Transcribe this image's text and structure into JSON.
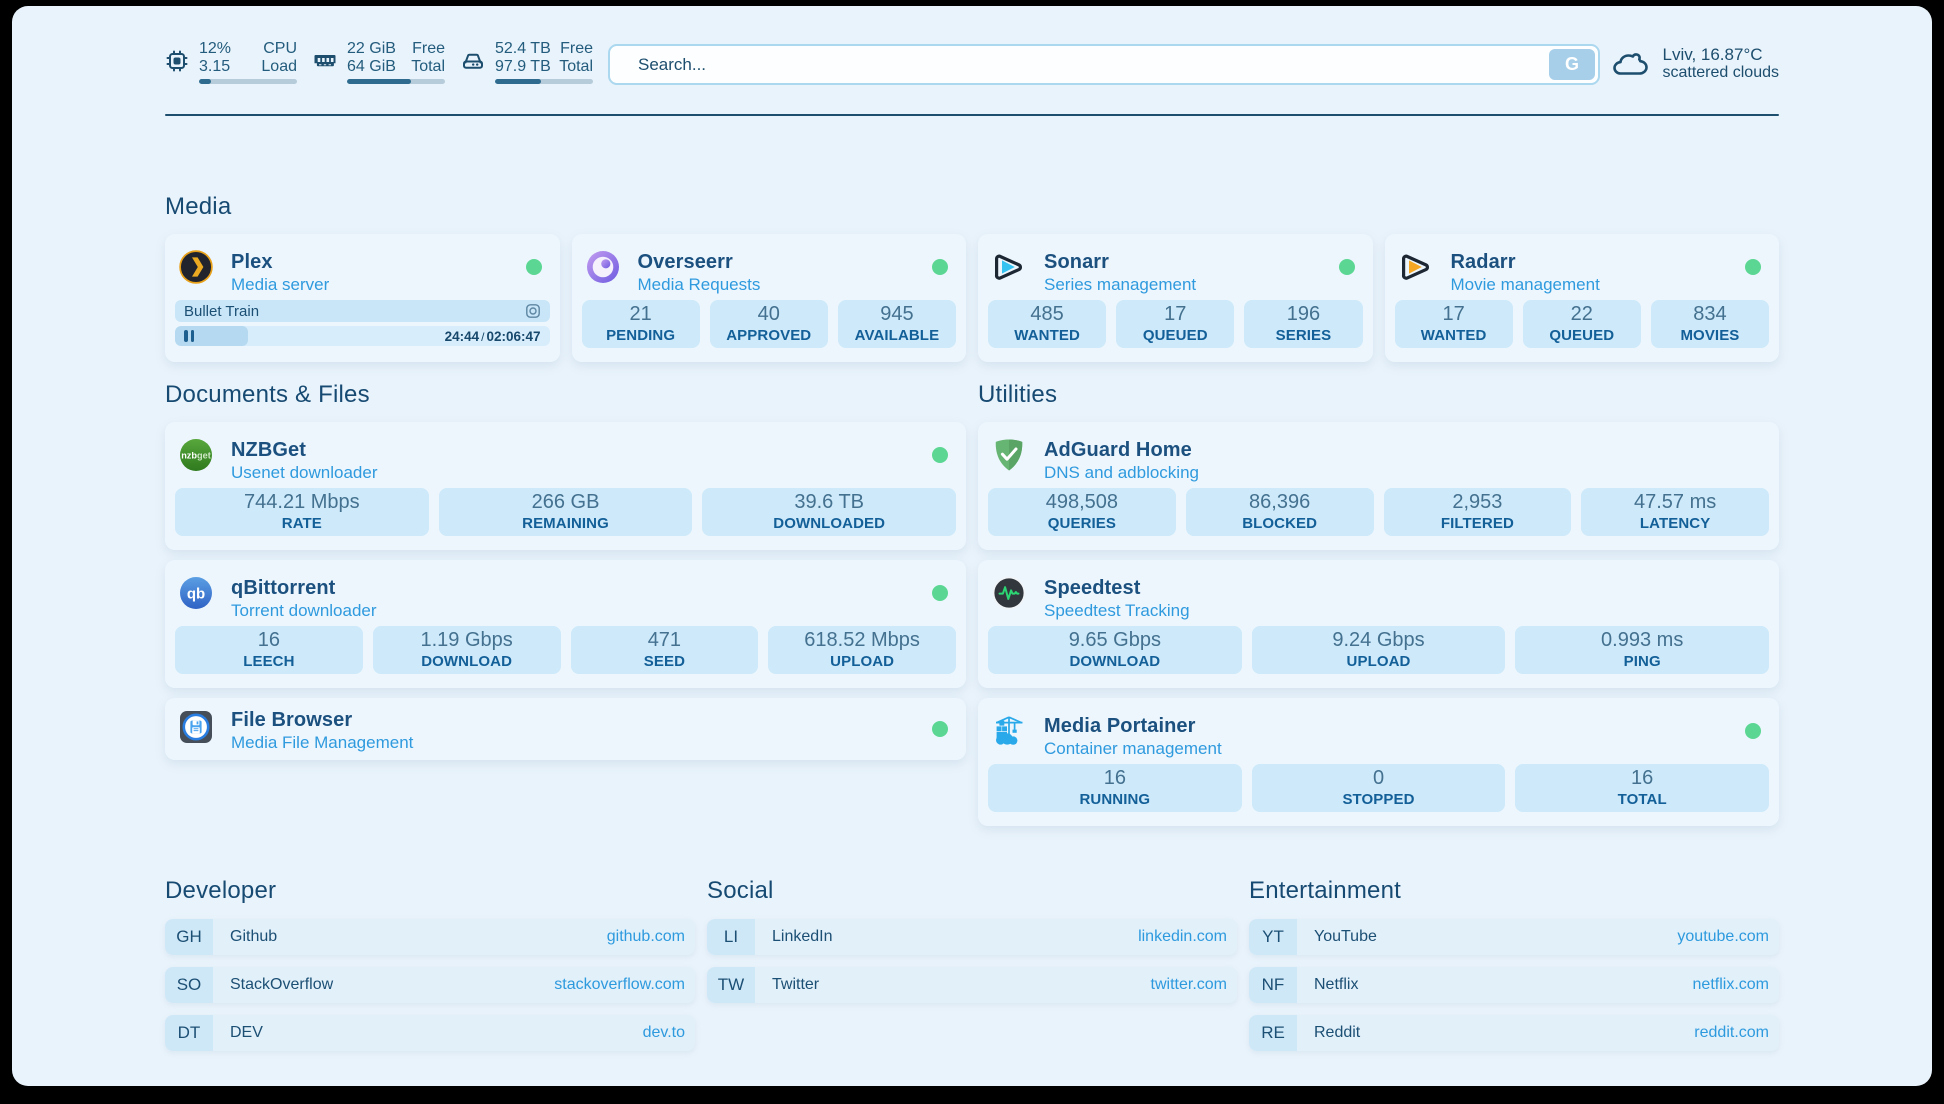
{
  "header": {
    "resources": [
      {
        "icon": "cpu-icon",
        "rows": [
          {
            "value": "12%",
            "label": "CPU"
          },
          {
            "value": "3.15",
            "label": "Load"
          }
        ],
        "progress_pct": 12
      },
      {
        "icon": "memory-icon",
        "rows": [
          {
            "value": "22 GiB",
            "label": "Free"
          },
          {
            "value": "64 GiB",
            "label": "Total"
          }
        ],
        "progress_pct": 65.6
      },
      {
        "icon": "disk-icon",
        "rows": [
          {
            "value": "52.4 TB",
            "label": "Free"
          },
          {
            "value": "97.9 TB",
            "label": "Total"
          }
        ],
        "progress_pct": 46.5
      }
    ],
    "search": {
      "placeholder": "Search...",
      "button_label": "G"
    },
    "weather": {
      "location_temp": "Lviv, 16.87°C",
      "condition": "scattered clouds"
    }
  },
  "sections": {
    "media": {
      "title": "Media",
      "plex": {
        "name": "Plex",
        "description": "Media server",
        "now_playing": {
          "title": "Bullet Train",
          "elapsed": "24:44",
          "total": "02:06:47",
          "progress_pct": 19.5
        }
      },
      "overseerr": {
        "name": "Overseerr",
        "description": "Media Requests",
        "stats": [
          {
            "value": "21",
            "label": "PENDING"
          },
          {
            "value": "40",
            "label": "APPROVED"
          },
          {
            "value": "945",
            "label": "AVAILABLE"
          }
        ]
      },
      "sonarr": {
        "name": "Sonarr",
        "description": "Series management",
        "stats": [
          {
            "value": "485",
            "label": "WANTED"
          },
          {
            "value": "17",
            "label": "QUEUED"
          },
          {
            "value": "196",
            "label": "SERIES"
          }
        ]
      },
      "radarr": {
        "name": "Radarr",
        "description": "Movie management",
        "stats": [
          {
            "value": "17",
            "label": "WANTED"
          },
          {
            "value": "22",
            "label": "QUEUED"
          },
          {
            "value": "834",
            "label": "MOVIES"
          }
        ]
      }
    },
    "documents": {
      "title": "Documents & Files",
      "nzbget": {
        "name": "NZBGet",
        "description": "Usenet downloader",
        "stats": [
          {
            "value": "744.21 Mbps",
            "label": "RATE"
          },
          {
            "value": "266 GB",
            "label": "REMAINING"
          },
          {
            "value": "39.6 TB",
            "label": "DOWNLOADED"
          }
        ]
      },
      "qbittorrent": {
        "name": "qBittorrent",
        "description": "Torrent downloader",
        "stats": [
          {
            "value": "16",
            "label": "LEECH"
          },
          {
            "value": "1.19 Gbps",
            "label": "DOWNLOAD"
          },
          {
            "value": "471",
            "label": "SEED"
          },
          {
            "value": "618.52 Mbps",
            "label": "UPLOAD"
          }
        ]
      },
      "filebrowser": {
        "name": "File Browser",
        "description": "Media File Management"
      }
    },
    "utilities": {
      "title": "Utilities",
      "adguard": {
        "name": "AdGuard Home",
        "description": "DNS and adblocking",
        "stats": [
          {
            "value": "498,508",
            "label": "QUERIES"
          },
          {
            "value": "86,396",
            "label": "BLOCKED"
          },
          {
            "value": "2,953",
            "label": "FILTERED"
          },
          {
            "value": "47.57 ms",
            "label": "LATENCY"
          }
        ]
      },
      "speedtest": {
        "name": "Speedtest",
        "description": "Speedtest Tracking",
        "stats": [
          {
            "value": "9.65 Gbps",
            "label": "DOWNLOAD"
          },
          {
            "value": "9.24 Gbps",
            "label": "UPLOAD"
          },
          {
            "value": "0.993 ms",
            "label": "PING"
          }
        ]
      },
      "portainer": {
        "name": "Media Portainer",
        "description": "Container management",
        "stats": [
          {
            "value": "16",
            "label": "RUNNING"
          },
          {
            "value": "0",
            "label": "STOPPED"
          },
          {
            "value": "16",
            "label": "TOTAL"
          }
        ]
      }
    },
    "bookmarks": [
      {
        "title": "Developer",
        "items": [
          {
            "abbr": "GH",
            "name": "Github",
            "domain": "github.com"
          },
          {
            "abbr": "SO",
            "name": "StackOverflow",
            "domain": "stackoverflow.com"
          },
          {
            "abbr": "DT",
            "name": "DEV",
            "domain": "dev.to"
          }
        ]
      },
      {
        "title": "Social",
        "items": [
          {
            "abbr": "LI",
            "name": "LinkedIn",
            "domain": "linkedin.com"
          },
          {
            "abbr": "TW",
            "name": "Twitter",
            "domain": "twitter.com"
          }
        ]
      },
      {
        "title": "Entertainment",
        "items": [
          {
            "abbr": "YT",
            "name": "YouTube",
            "domain": "youtube.com"
          },
          {
            "abbr": "NF",
            "name": "Netflix",
            "domain": "netflix.com"
          },
          {
            "abbr": "RE",
            "name": "Reddit",
            "domain": "reddit.com"
          }
        ]
      }
    ]
  }
}
